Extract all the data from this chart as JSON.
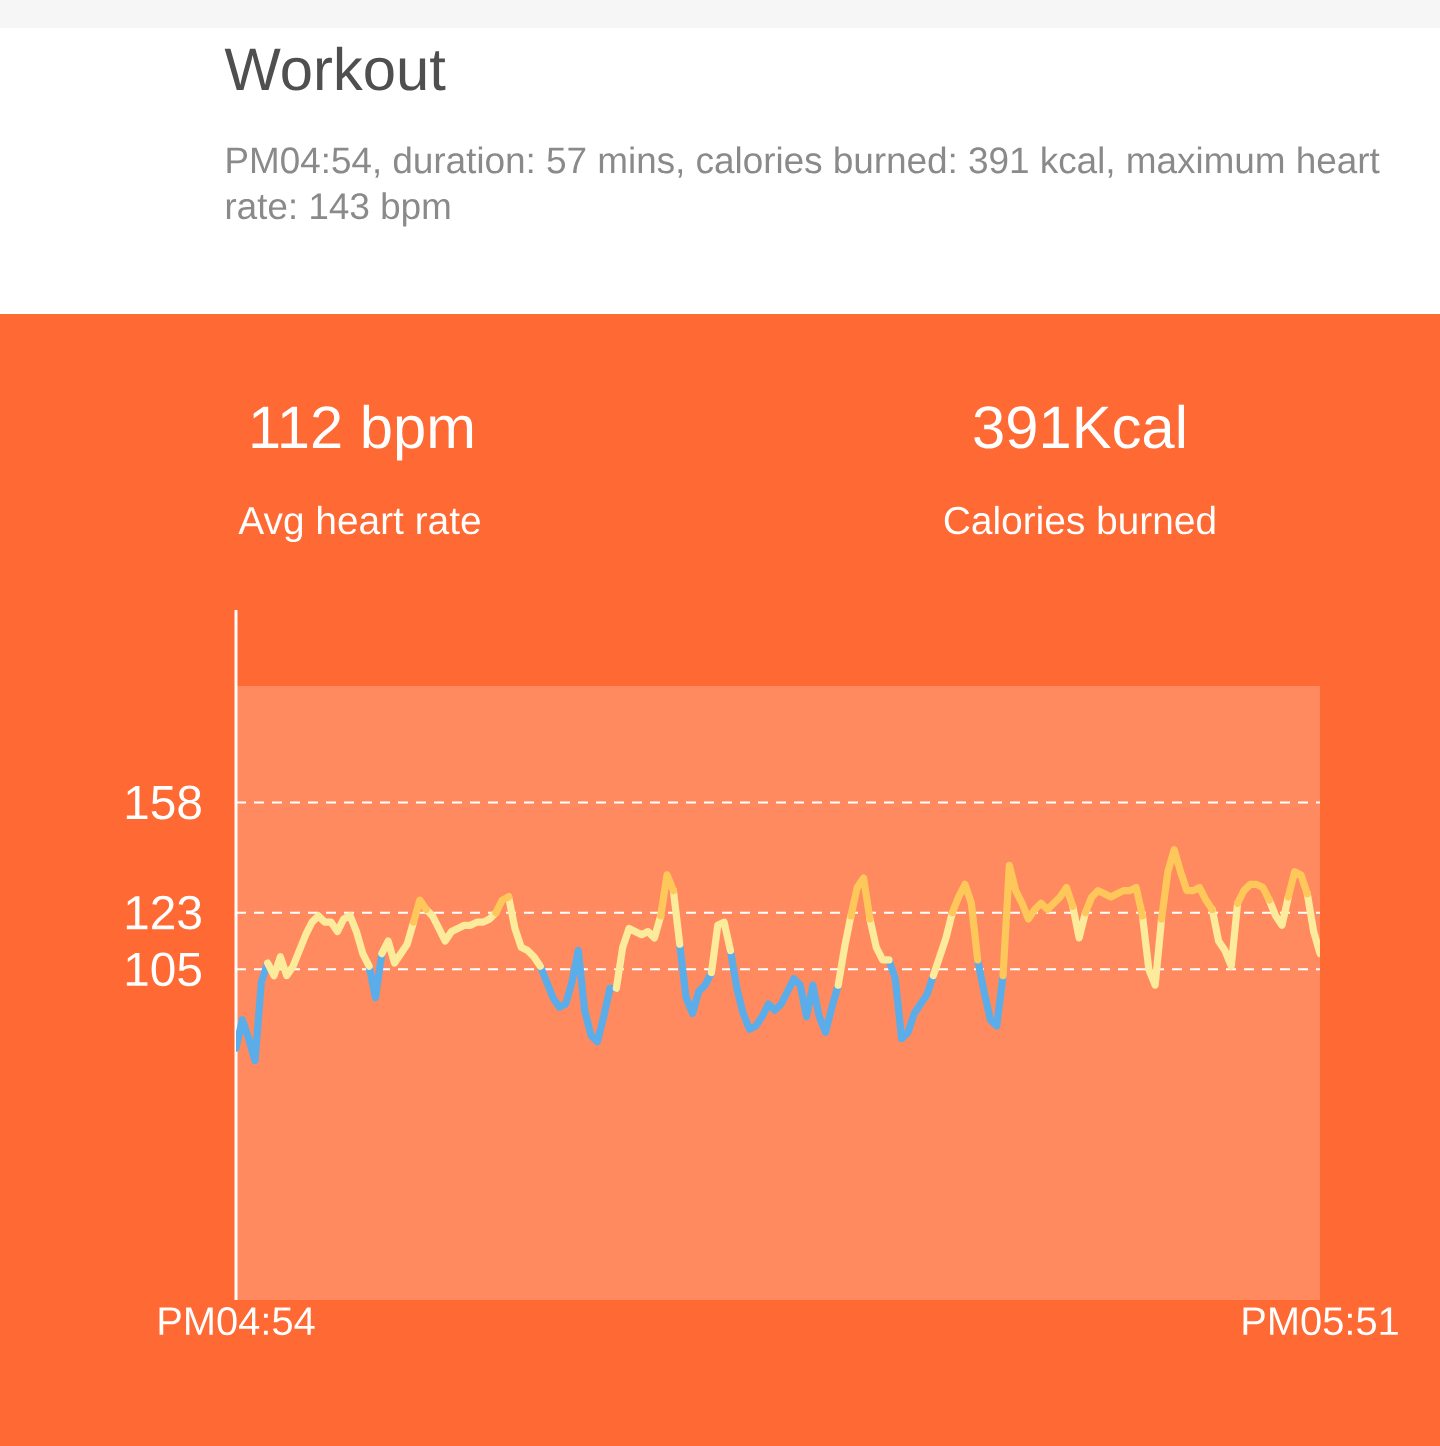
{
  "chart_data": {
    "type": "line",
    "title": "Workout",
    "subtitle": "PM04:54, duration: 57 mins, calories burned: 391 kcal, maximum heart rate: 143 bpm",
    "annotations": [
      "112 bpm",
      "Avg heart rate",
      "391Kcal",
      "Calories burned"
    ],
    "categories": [
      "PM04:54",
      null,
      null,
      null,
      null,
      null,
      null,
      null,
      null,
      null,
      null,
      null,
      null,
      null,
      null,
      null,
      null,
      null,
      null,
      null,
      null,
      null,
      null,
      null,
      null,
      null,
      null,
      null,
      null,
      null,
      null,
      null,
      null,
      null,
      null,
      null,
      null,
      null,
      null,
      null,
      null,
      null,
      null,
      null,
      null,
      null,
      null,
      null,
      null,
      null,
      null,
      null,
      null,
      null,
      null,
      null,
      null,
      null,
      null,
      null,
      null,
      null,
      null,
      null,
      null,
      null,
      null,
      null,
      null,
      null,
      null,
      null,
      null,
      null,
      null,
      null,
      null,
      null,
      null,
      null,
      null,
      null,
      null,
      null,
      null,
      null,
      null,
      null,
      null,
      null,
      null,
      null,
      null,
      null,
      null,
      null,
      null,
      null,
      null,
      null,
      null,
      null,
      null,
      null,
      null,
      null,
      null,
      null,
      null,
      null,
      null,
      null,
      null,
      null,
      null,
      null,
      null,
      null,
      null,
      null,
      null,
      null,
      null,
      null,
      null,
      null,
      null,
      null,
      null,
      null,
      null,
      null,
      null,
      null,
      null,
      null,
      null,
      null,
      null,
      null,
      null,
      null,
      null,
      null,
      null,
      null,
      null,
      null,
      null,
      null,
      null,
      null,
      null,
      null,
      null,
      null,
      null,
      null,
      null,
      null,
      null,
      null,
      null,
      null,
      null,
      null,
      null,
      null,
      null,
      null,
      null,
      "PM05:51"
    ],
    "series": [
      {
        "color": "#5badea",
        "values": [
          80,
          89,
          83,
          76,
          101,
          107,
          null,
          null,
          null,
          null,
          null,
          null,
          null,
          null,
          null,
          null,
          null,
          null,
          null,
          null,
          null,
          106,
          96,
          110,
          null,
          null,
          null,
          null,
          null,
          null,
          null,
          null,
          null,
          null,
          null,
          null,
          null,
          null,
          null,
          null,
          null,
          null,
          null,
          null,
          null,
          null,
          null,
          null,
          106,
          101,
          96,
          93,
          94,
          101,
          111,
          92,
          84,
          82,
          90,
          99,
          99,
          null,
          null,
          null,
          null,
          null,
          null,
          null,
          null,
          null,
          113,
          96,
          91,
          98,
          100,
          104,
          null,
          null,
          111,
          99,
          91,
          86,
          87,
          90,
          94,
          92,
          94,
          98,
          102,
          100,
          90,
          100,
          90,
          85,
          93,
          100,
          null,
          null,
          null,
          null,
          null,
          null,
          null,
          108,
          102,
          83,
          85,
          91,
          94,
          97,
          103,
          null,
          null,
          null,
          null,
          null,
          null,
          108,
          98,
          89,
          87,
          103,
          null,
          null,
          null,
          null,
          null,
          null,
          null,
          null,
          null,
          null,
          null,
          null,
          null,
          null,
          null,
          null,
          null,
          null,
          null,
          null,
          null,
          null,
          null,
          null,
          null,
          null,
          null,
          null,
          null,
          null,
          null,
          null,
          null,
          null,
          null,
          null,
          null,
          null,
          null,
          null,
          null,
          null,
          null,
          null,
          null,
          null,
          null,
          null,
          null,
          null
        ]
      },
      {
        "color": "#fdeb9c",
        "values": [
          null,
          null,
          null,
          null,
          null,
          107,
          103,
          109,
          103,
          106,
          111,
          116,
          120,
          122,
          120,
          120,
          117,
          121,
          122,
          117,
          110,
          106,
          null,
          110,
          114,
          107,
          110,
          113,
          120,
          null,
          124,
          122,
          118,
          114,
          117,
          118,
          119,
          119,
          120,
          120,
          121,
          123,
          null,
          128,
          118,
          112,
          111,
          109,
          106,
          null,
          null,
          null,
          null,
          null,
          null,
          null,
          null,
          null,
          null,
          null,
          99,
          112,
          118,
          117,
          116,
          117,
          115,
          122,
          null,
          130,
          113,
          null,
          null,
          null,
          null,
          104,
          119,
          120,
          111,
          null,
          null,
          null,
          null,
          null,
          null,
          null,
          null,
          null,
          null,
          null,
          null,
          null,
          null,
          null,
          null,
          100,
          112,
          122,
          null,
          null,
          121,
          112,
          108,
          108,
          null,
          null,
          null,
          null,
          null,
          null,
          103,
          109,
          115,
          123,
          null,
          null,
          null,
          null,
          null,
          null,
          null,
          null,
          null,
          null,
          null,
          null,
          null,
          null,
          null,
          null,
          null,
          null,
          125,
          115,
          123,
          null,
          null,
          null,
          null,
          null,
          null,
          null,
          null,
          122,
          105,
          100,
          121,
          null,
          null,
          null,
          null,
          null,
          null,
          null,
          124,
          114,
          111,
          106,
          126,
          null,
          null,
          null,
          null,
          127,
          122,
          119,
          128,
          null,
          null,
          129,
          117,
          110
        ]
      },
      {
        "color": "#fec75a",
        "values": [
          null,
          null,
          null,
          null,
          null,
          null,
          null,
          null,
          null,
          null,
          null,
          null,
          null,
          null,
          null,
          null,
          null,
          null,
          null,
          null,
          null,
          null,
          null,
          null,
          null,
          null,
          null,
          null,
          120,
          127,
          124,
          null,
          null,
          null,
          null,
          null,
          null,
          null,
          null,
          null,
          null,
          123,
          127,
          128,
          null,
          null,
          null,
          null,
          null,
          null,
          null,
          null,
          null,
          null,
          null,
          null,
          null,
          null,
          null,
          null,
          null,
          null,
          null,
          null,
          null,
          null,
          null,
          122,
          135,
          130,
          null,
          null,
          null,
          null,
          null,
          null,
          null,
          null,
          null,
          null,
          null,
          null,
          null,
          null,
          null,
          null,
          null,
          null,
          null,
          null,
          null,
          null,
          null,
          null,
          null,
          null,
          null,
          122,
          131,
          134,
          121,
          null,
          null,
          null,
          null,
          null,
          null,
          null,
          null,
          null,
          null,
          null,
          null,
          123,
          128,
          132,
          126,
          108,
          null,
          null,
          null,
          103,
          138,
          130,
          126,
          121,
          124,
          126,
          124,
          126,
          128,
          131,
          125,
          null,
          123,
          128,
          130,
          129,
          128,
          129,
          130,
          130,
          131,
          122,
          null,
          null,
          121,
          136,
          143,
          136,
          130,
          130,
          131,
          127,
          124,
          null,
          null,
          null,
          126,
          130,
          132,
          132,
          131,
          127,
          null,
          null,
          128,
          136,
          135,
          129,
          null,
          null
        ]
      }
    ],
    "ylim": [
      0,
      195
    ],
    "yticks": [
      105,
      123,
      158
    ],
    "grid": "y"
  }
}
